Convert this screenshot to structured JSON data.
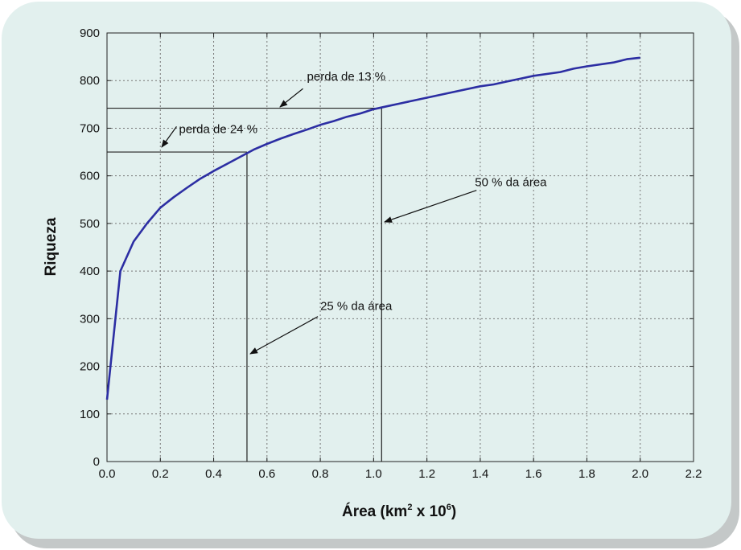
{
  "chart_data": {
    "type": "line",
    "xlabel": "Área (km",
    "xlabel_sup1": "2",
    "xlabel_mid": " x 10",
    "xlabel_sup2": "6",
    "xlabel_end": ")",
    "ylabel": "Riqueza",
    "xlim": [
      0,
      2.2
    ],
    "ylim": [
      0,
      900
    ],
    "xticks": [
      "0.0",
      "0.2",
      "0.4",
      "0.6",
      "0.8",
      "1.0",
      "1.2",
      "1.4",
      "1.6",
      "1.8",
      "2.0",
      "2.2"
    ],
    "yticks": [
      "0",
      "100",
      "200",
      "300",
      "400",
      "500",
      "600",
      "700",
      "800",
      "900"
    ],
    "grid": true,
    "line_color": "#2c2ea3",
    "series": [
      {
        "x": [
          0,
          0.05,
          0.1,
          0.15,
          0.2,
          0.25,
          0.3,
          0.35,
          0.4,
          0.45,
          0.5,
          0.55,
          0.6,
          0.65,
          0.7,
          0.75,
          0.8,
          0.85,
          0.9,
          0.95,
          1.0,
          1.05,
          1.1,
          1.2,
          1.3,
          1.4,
          1.45,
          1.5,
          1.55,
          1.6,
          1.7,
          1.75,
          1.8,
          1.9,
          1.95,
          2.0
        ],
        "y": [
          130,
          400,
          462,
          500,
          533,
          555,
          575,
          594,
          610,
          625,
          640,
          655,
          667,
          678,
          688,
          697,
          707,
          715,
          724,
          731,
          740,
          746,
          752,
          764,
          776,
          788,
          792,
          798,
          804,
          810,
          818,
          825,
          830,
          838,
          845,
          848
        ]
      }
    ],
    "reference_lines": [
      {
        "x": 0.525,
        "y": 650
      },
      {
        "x": 1.03,
        "y": 742
      }
    ],
    "annotations": [
      {
        "text": "perda de 13 %",
        "x": 0.75,
        "y": 800
      },
      {
        "text": "perda de 24 %",
        "x": 0.27,
        "y": 690
      },
      {
        "text": "50 % da área",
        "x": 1.38,
        "y": 578
      },
      {
        "text": "25 % da área",
        "x": 0.8,
        "y": 318
      }
    ]
  }
}
